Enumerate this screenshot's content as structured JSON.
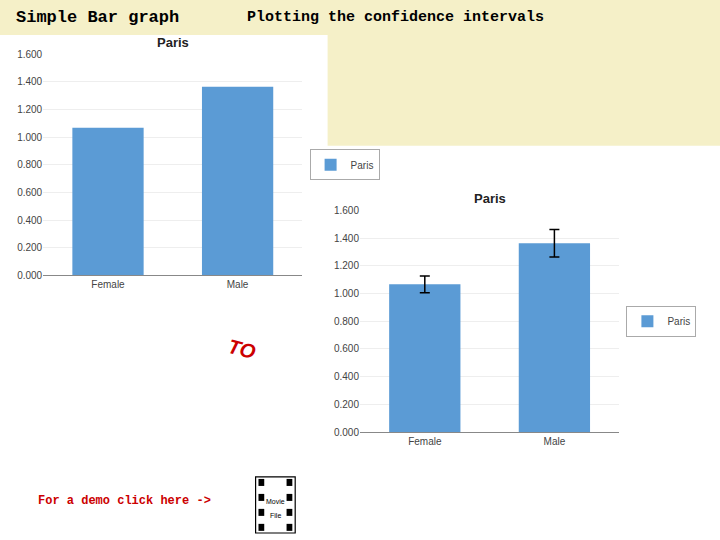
{
  "title": "Simple Bar graph",
  "subtitle": "Plotting the confidence intervals",
  "annotations": [
    {
      "text": "TO",
      "color": "#CC0000"
    },
    {
      "text": "For a demo click here ->",
      "color": "#CC0000"
    },
    {
      "text": "Movie"
    },
    {
      "text": "File"
    }
  ],
  "chart_data": [
    {
      "type": "bar",
      "title": "Paris",
      "categories": [
        "Female",
        "Male"
      ],
      "series": [
        {
          "name": "Paris",
          "color": "#5B9BD5",
          "values": [
            1.067,
            1.364
          ]
        }
      ],
      "ylim": [
        0,
        1.6
      ],
      "yticks": [
        {
          "value": 0,
          "label": "0.000"
        },
        {
          "value": 0.2,
          "label": "0.200"
        },
        {
          "value": 0.4,
          "label": "0.400"
        },
        {
          "value": 0.6,
          "label": "0.600"
        },
        {
          "value": 0.8,
          "label": "0.800"
        },
        {
          "value": 1.0,
          "label": "1.000"
        },
        {
          "value": 1.2,
          "label": "1.200"
        },
        {
          "value": 1.4,
          "label": "1.400"
        },
        {
          "value": 1.6,
          "label": "1.600"
        }
      ],
      "grid": true,
      "legend": "right"
    },
    {
      "type": "bar",
      "title": "Paris",
      "categories": [
        "Female",
        "Male"
      ],
      "series": [
        {
          "name": "Paris",
          "color": "#5B9BD5",
          "values": [
            1.067,
            1.364
          ],
          "errors": [
            0.06,
            0.1
          ]
        }
      ],
      "ylim": [
        0,
        1.6
      ],
      "yticks": [
        {
          "value": 0,
          "label": "0.000"
        },
        {
          "value": 0.2,
          "label": "0.200"
        },
        {
          "value": 0.4,
          "label": "0.400"
        },
        {
          "value": 0.6,
          "label": "0.600"
        },
        {
          "value": 0.8,
          "label": "0.800"
        },
        {
          "value": 1.0,
          "label": "1.000"
        },
        {
          "value": 1.2,
          "label": "1.200"
        },
        {
          "value": 1.4,
          "label": "1.400"
        },
        {
          "value": 1.6,
          "label": "1.600"
        }
      ],
      "grid": true,
      "legend": "right"
    }
  ]
}
